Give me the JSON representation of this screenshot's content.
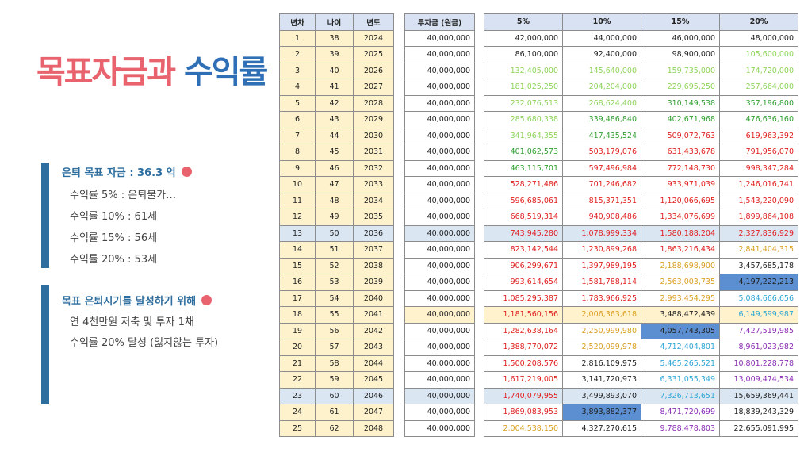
{
  "title": {
    "part1": "목표자금과",
    "part2": "수익률"
  },
  "box1": {
    "header": "은퇴 목표 자금 : 36.3 억",
    "lines": [
      "수익률 5% : 은퇴불가…",
      "수익률 10% : 61세",
      "수익률 15% : 56세",
      "수익률 20% : 53세"
    ]
  },
  "box2": {
    "header": "목표 은퇴시기를 달성하기 위해",
    "lines": [
      "연 4천만원 저축 및 투자 1채",
      "수익률 20% 달성 (잃지않는 투자)"
    ]
  },
  "colors": {
    "title_red": "#e8636d",
    "title_blue": "#2f6fb5",
    "accent_bar": "#2e6e9e",
    "header_fill": "#d9e2f3",
    "year_fill": "#fdf2cc",
    "selected_fill": "#5b8fd1"
  },
  "table": {
    "headers_left": [
      "년차",
      "나이",
      "년도"
    ],
    "header_principal": "투자금 (원금)",
    "headers_rates": [
      "5%",
      "10%",
      "15%",
      "20%"
    ],
    "highlight_rows": [
      12,
      22
    ],
    "yellow_rows": [
      17
    ],
    "rows": [
      {
        "n": "1",
        "age": "38",
        "year": "2024",
        "principal": "40,000,000",
        "r5": "42,000,000",
        "r10": "44,000,000",
        "r15": "46,000,000",
        "r20": "48,000,000",
        "c": [
          "k",
          "k",
          "k",
          "k"
        ]
      },
      {
        "n": "2",
        "age": "39",
        "year": "2025",
        "principal": "40,000,000",
        "r5": "86,100,000",
        "r10": "92,400,000",
        "r15": "98,900,000",
        "r20": "105,600,000",
        "c": [
          "k",
          "k",
          "k",
          "g"
        ]
      },
      {
        "n": "3",
        "age": "40",
        "year": "2026",
        "principal": "40,000,000",
        "r5": "132,405,000",
        "r10": "145,640,000",
        "r15": "159,735,000",
        "r20": "174,720,000",
        "c": [
          "g",
          "g",
          "g",
          "g"
        ]
      },
      {
        "n": "4",
        "age": "41",
        "year": "2027",
        "principal": "40,000,000",
        "r5": "181,025,250",
        "r10": "204,204,000",
        "r15": "229,695,250",
        "r20": "257,664,000",
        "c": [
          "g",
          "g",
          "g",
          "g"
        ]
      },
      {
        "n": "5",
        "age": "42",
        "year": "2028",
        "principal": "40,000,000",
        "r5": "232,076,513",
        "r10": "268,624,400",
        "r15": "310,149,538",
        "r20": "357,196,800",
        "c": [
          "g",
          "g",
          "dg",
          "dg"
        ]
      },
      {
        "n": "6",
        "age": "43",
        "year": "2029",
        "principal": "40,000,000",
        "r5": "285,680,338",
        "r10": "339,486,840",
        "r15": "402,671,968",
        "r20": "476,636,160",
        "c": [
          "g",
          "dg",
          "dg",
          "dg"
        ]
      },
      {
        "n": "7",
        "age": "44",
        "year": "2030",
        "principal": "40,000,000",
        "r5": "341,964,355",
        "r10": "417,435,524",
        "r15": "509,072,763",
        "r20": "619,963,392",
        "c": [
          "g",
          "dg",
          "r",
          "r"
        ]
      },
      {
        "n": "8",
        "age": "45",
        "year": "2031",
        "principal": "40,000,000",
        "r5": "401,062,573",
        "r10": "503,179,076",
        "r15": "631,433,678",
        "r20": "791,956,070",
        "c": [
          "dg",
          "r",
          "r",
          "r"
        ]
      },
      {
        "n": "9",
        "age": "46",
        "year": "2032",
        "principal": "40,000,000",
        "r5": "463,115,701",
        "r10": "597,496,984",
        "r15": "772,148,730",
        "r20": "998,347,284",
        "c": [
          "dg",
          "r",
          "r",
          "r"
        ]
      },
      {
        "n": "10",
        "age": "47",
        "year": "2033",
        "principal": "40,000,000",
        "r5": "528,271,486",
        "r10": "701,246,682",
        "r15": "933,971,039",
        "r20": "1,246,016,741",
        "c": [
          "r",
          "r",
          "r",
          "r"
        ]
      },
      {
        "n": "11",
        "age": "48",
        "year": "2034",
        "principal": "40,000,000",
        "r5": "596,685,061",
        "r10": "815,371,351",
        "r15": "1,120,066,695",
        "r20": "1,543,220,090",
        "c": [
          "r",
          "r",
          "r",
          "r"
        ]
      },
      {
        "n": "12",
        "age": "49",
        "year": "2035",
        "principal": "40,000,000",
        "r5": "668,519,314",
        "r10": "940,908,486",
        "r15": "1,334,076,699",
        "r20": "1,899,864,108",
        "c": [
          "r",
          "r",
          "r",
          "r"
        ]
      },
      {
        "n": "13",
        "age": "50",
        "year": "2036",
        "principal": "40,000,000",
        "r5": "743,945,280",
        "r10": "1,078,999,334",
        "r15": "1,580,188,204",
        "r20": "2,327,836,929",
        "c": [
          "r",
          "r",
          "r",
          "r"
        ]
      },
      {
        "n": "14",
        "age": "51",
        "year": "2037",
        "principal": "40,000,000",
        "r5": "823,142,544",
        "r10": "1,230,899,268",
        "r15": "1,863,216,434",
        "r20": "2,841,404,315",
        "c": [
          "r",
          "r",
          "r",
          "o"
        ]
      },
      {
        "n": "15",
        "age": "52",
        "year": "2038",
        "principal": "40,000,000",
        "r5": "906,299,671",
        "r10": "1,397,989,195",
        "r15": "2,188,698,900",
        "r20": "3,457,685,178",
        "c": [
          "r",
          "r",
          "o",
          "k"
        ]
      },
      {
        "n": "16",
        "age": "53",
        "year": "2039",
        "principal": "40,000,000",
        "r5": "993,614,654",
        "r10": "1,581,788,114",
        "r15": "2,563,003,735",
        "r20": "4,197,222,213",
        "c": [
          "r",
          "r",
          "o",
          "k"
        ]
      },
      {
        "n": "17",
        "age": "54",
        "year": "2040",
        "principal": "40,000,000",
        "r5": "1,085,295,387",
        "r10": "1,783,966,925",
        "r15": "2,993,454,295",
        "r20": "5,084,666,656",
        "c": [
          "r",
          "r",
          "o",
          "c"
        ]
      },
      {
        "n": "18",
        "age": "55",
        "year": "2041",
        "principal": "40,000,000",
        "r5": "1,181,560,156",
        "r10": "2,006,363,618",
        "r15": "3,488,472,439",
        "r20": "6,149,599,987",
        "c": [
          "r",
          "o",
          "k",
          "c"
        ]
      },
      {
        "n": "19",
        "age": "56",
        "year": "2042",
        "principal": "40,000,000",
        "r5": "1,282,638,164",
        "r10": "2,250,999,980",
        "r15": "4,057,743,305",
        "r20": "7,427,519,985",
        "c": [
          "r",
          "o",
          "k",
          "p"
        ]
      },
      {
        "n": "20",
        "age": "57",
        "year": "2043",
        "principal": "40,000,000",
        "r5": "1,388,770,072",
        "r10": "2,520,099,978",
        "r15": "4,712,404,801",
        "r20": "8,961,023,982",
        "c": [
          "r",
          "o",
          "c",
          "p"
        ]
      },
      {
        "n": "21",
        "age": "58",
        "year": "2044",
        "principal": "40,000,000",
        "r5": "1,500,208,576",
        "r10": "2,816,109,975",
        "r15": "5,465,265,521",
        "r20": "10,801,228,778",
        "c": [
          "r",
          "k",
          "c",
          "p"
        ]
      },
      {
        "n": "22",
        "age": "59",
        "year": "2045",
        "principal": "40,000,000",
        "r5": "1,617,219,005",
        "r10": "3,141,720,973",
        "r15": "6,331,055,349",
        "r20": "13,009,474,534",
        "c": [
          "r",
          "k",
          "c",
          "p"
        ]
      },
      {
        "n": "23",
        "age": "60",
        "year": "2046",
        "principal": "40,000,000",
        "r5": "1,740,079,955",
        "r10": "3,499,893,070",
        "r15": "7,326,713,651",
        "r20": "15,659,369,441",
        "c": [
          "r",
          "k",
          "c",
          "k"
        ]
      },
      {
        "n": "24",
        "age": "61",
        "year": "2047",
        "principal": "40,000,000",
        "r5": "1,869,083,953",
        "r10": "3,893,882,377",
        "r15": "8,471,720,699",
        "r20": "18,839,243,329",
        "c": [
          "r",
          "k",
          "p",
          "k"
        ]
      },
      {
        "n": "25",
        "age": "62",
        "year": "2048",
        "principal": "40,000,000",
        "r5": "2,004,538,150",
        "r10": "4,327,270,615",
        "r15": "9,788,478,803",
        "r20": "22,655,091,995",
        "c": [
          "o",
          "k",
          "p",
          "k"
        ]
      }
    ],
    "selected_cells": [
      {
        "row": 15,
        "col": 3
      },
      {
        "row": 18,
        "col": 2
      },
      {
        "row": 23,
        "col": 1
      }
    ]
  }
}
